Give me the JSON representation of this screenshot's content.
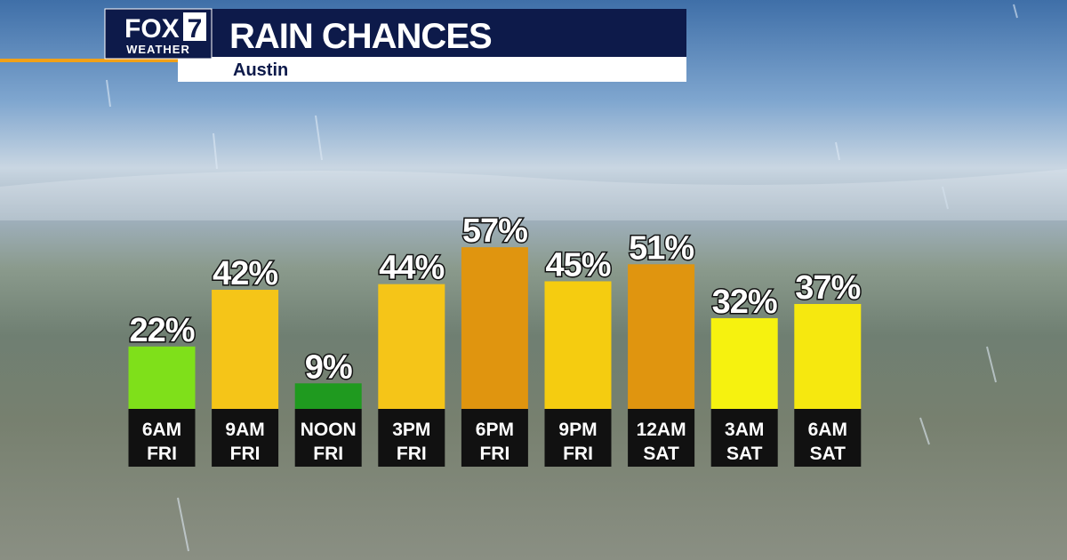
{
  "logo": {
    "brand": "FOX",
    "number": "7",
    "tagline": "WEATHER"
  },
  "chart_data": {
    "type": "bar",
    "title": "RAIN CHANCES",
    "subtitle": "Austin",
    "categories": [
      "6AM FRI",
      "9AM FRI",
      "NOON FRI",
      "3PM FRI",
      "6PM FRI",
      "9PM FRI",
      "12AM SAT",
      "3AM SAT",
      "6AM SAT"
    ],
    "values": [
      22,
      42,
      9,
      44,
      57,
      45,
      51,
      32,
      37
    ],
    "value_labels": [
      "22%",
      "42%",
      "9%",
      "44%",
      "57%",
      "45%",
      "51%",
      "32%",
      "37%"
    ],
    "colors": [
      "#7fe01a",
      "#f5c518",
      "#1f9a1f",
      "#f5c518",
      "#e0950f",
      "#f5cc10",
      "#e0950f",
      "#f6f20f",
      "#f6e80f"
    ]
  }
}
